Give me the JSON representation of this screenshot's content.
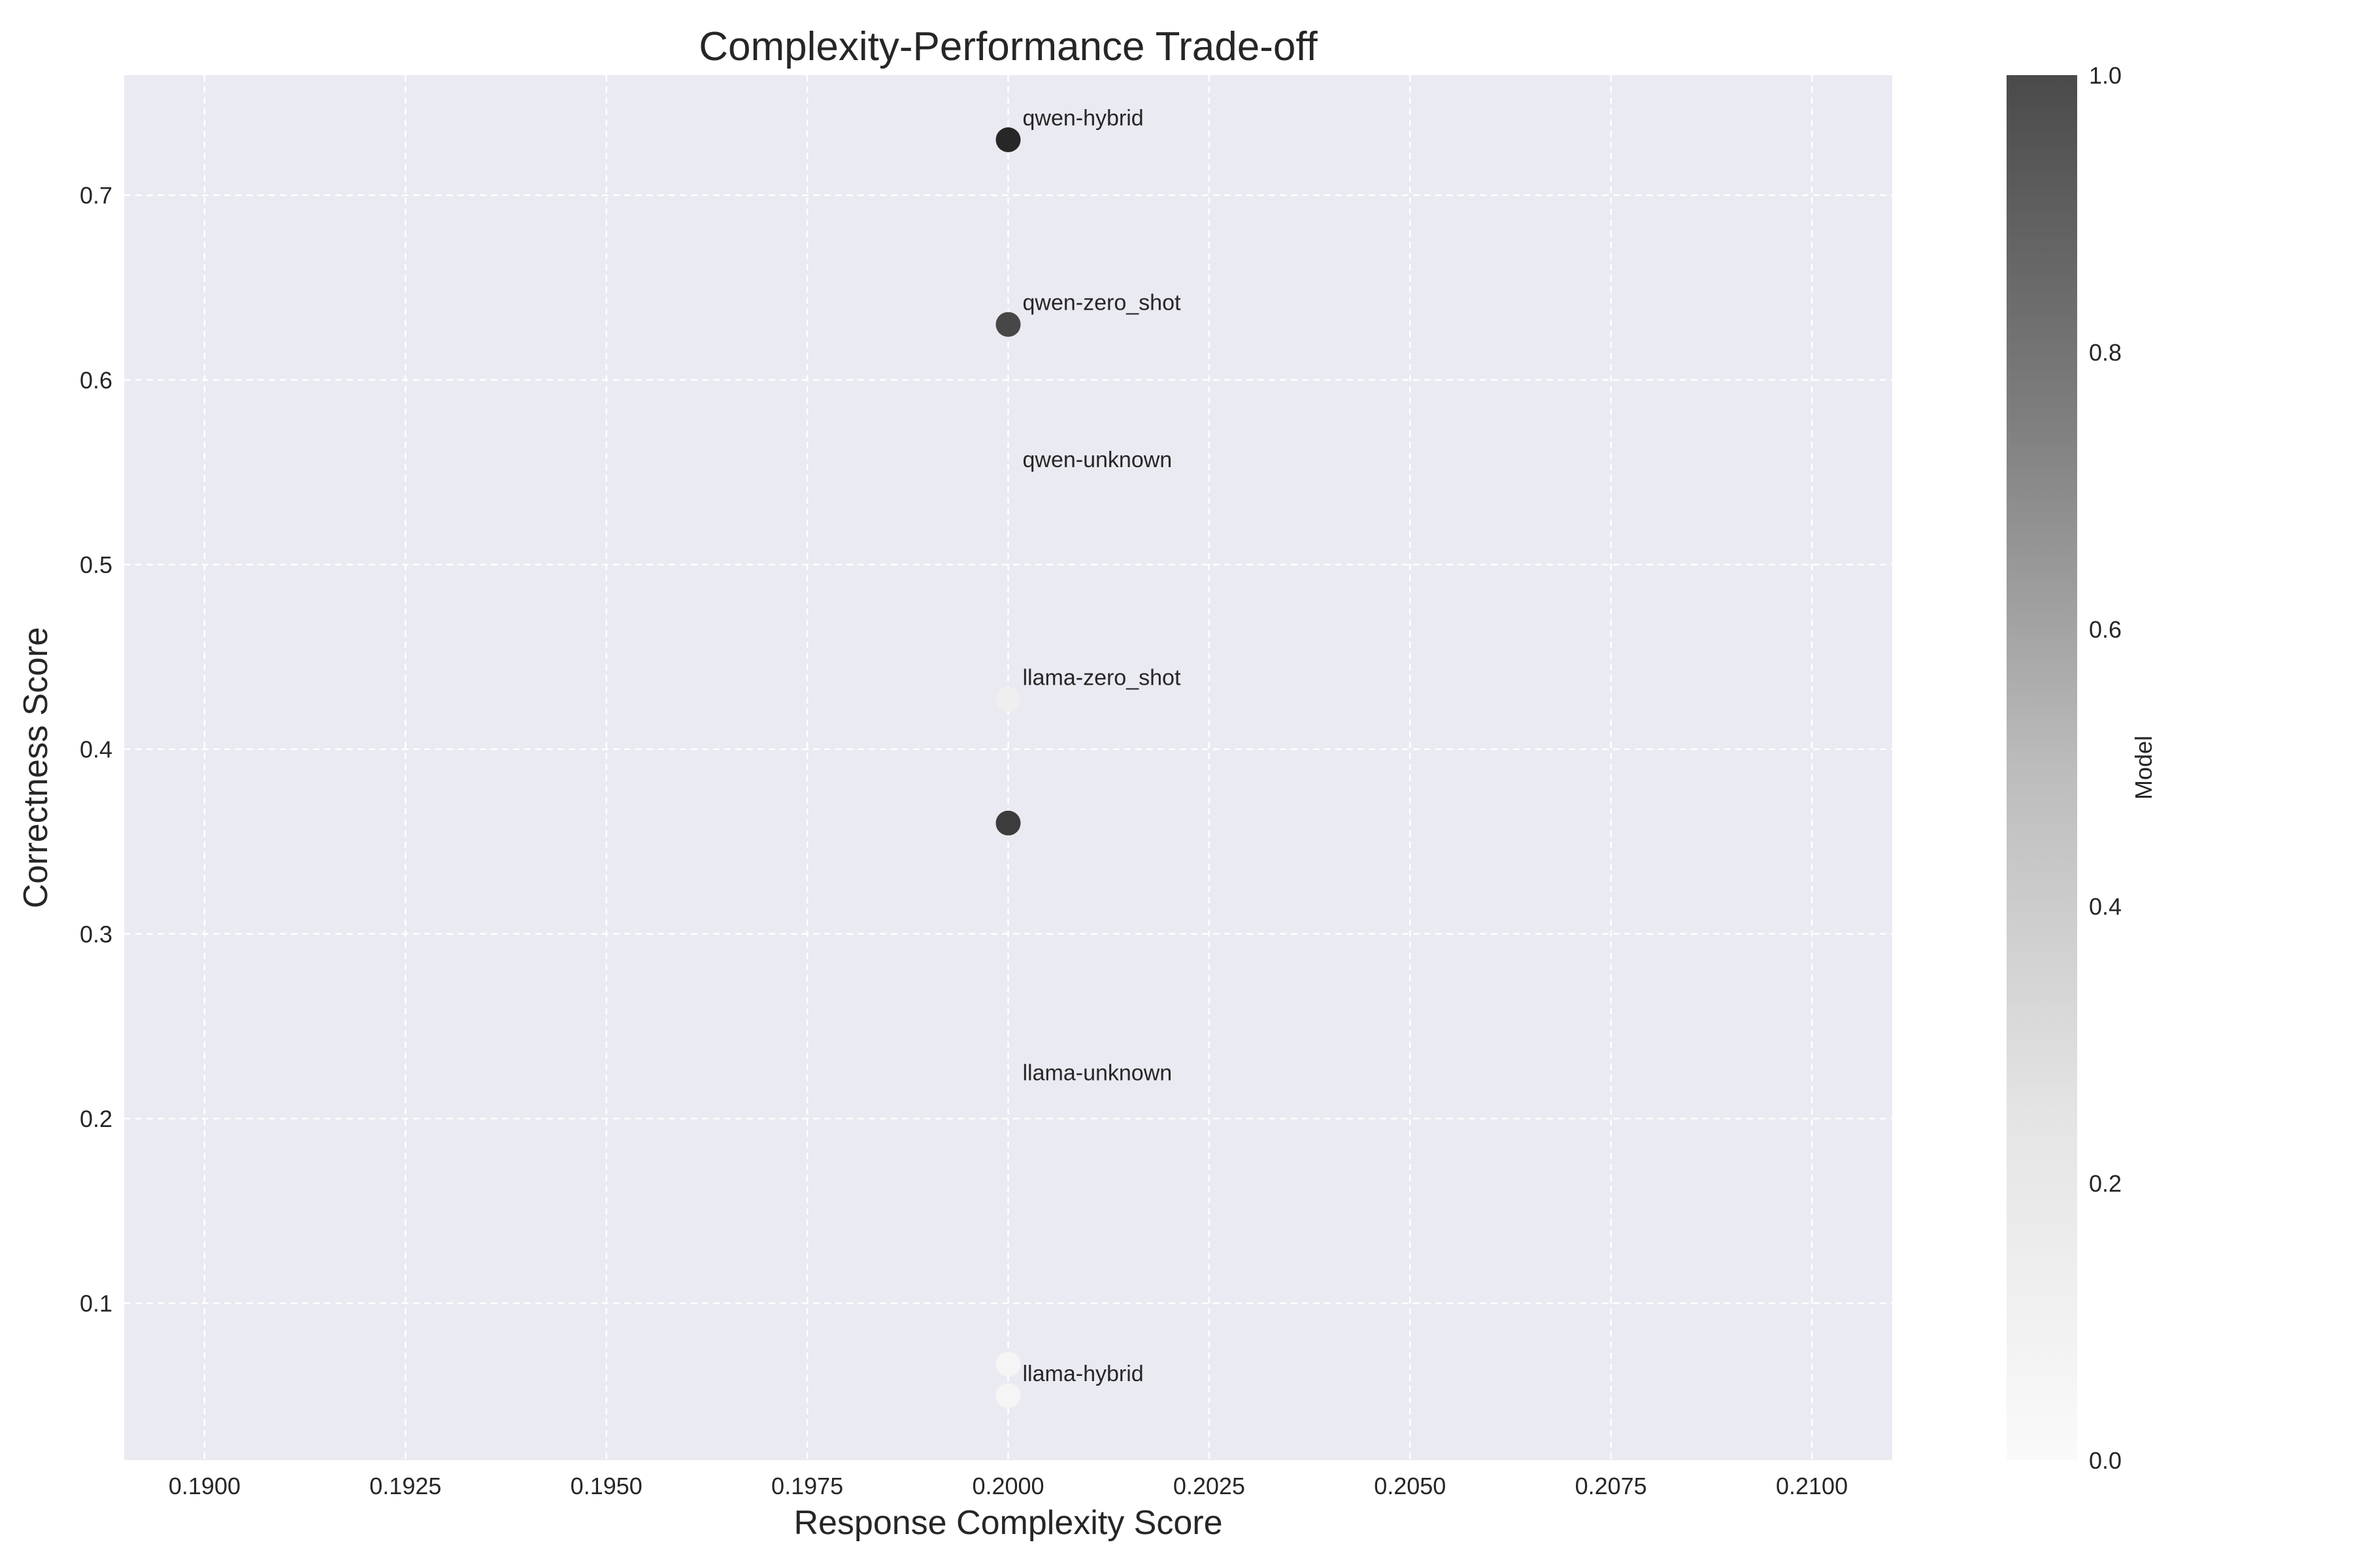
{
  "chart_data": {
    "type": "scatter",
    "title": "Complexity-Performance Trade-off",
    "xlabel": "Response Complexity Score",
    "ylabel": "Correctness Score",
    "xlim": [
      0.189,
      0.211
    ],
    "ylim": [
      0.015,
      0.765
    ],
    "x_ticks": [
      0.19,
      0.1925,
      0.195,
      0.1975,
      0.2,
      0.2025,
      0.205,
      0.2075,
      0.21
    ],
    "x_tick_labels": [
      "0.1900",
      "0.1925",
      "0.1950",
      "0.1975",
      "0.2000",
      "0.2025",
      "0.2050",
      "0.2075",
      "0.2100"
    ],
    "y_ticks": [
      0.1,
      0.2,
      0.3,
      0.4,
      0.5,
      0.6,
      0.7
    ],
    "y_tick_labels": [
      "0.1",
      "0.2",
      "0.3",
      "0.4",
      "0.5",
      "0.6",
      "0.7"
    ],
    "grid": true,
    "points": [
      {
        "x": 0.2,
        "y": 0.73,
        "color_value": 1.0
      },
      {
        "x": 0.2,
        "y": 0.63,
        "color_value": 0.85
      },
      {
        "x": 0.2,
        "y": 0.427,
        "color_value": 0.05
      },
      {
        "x": 0.2,
        "y": 0.36,
        "color_value": 0.9
      },
      {
        "x": 0.2,
        "y": 0.067,
        "color_value": 0.02
      },
      {
        "x": 0.2,
        "y": 0.05,
        "color_value": 0.02
      }
    ],
    "annotations": [
      {
        "text": "qwen-hybrid",
        "x": 0.2,
        "y": 0.73
      },
      {
        "text": "qwen-zero_shot",
        "x": 0.2,
        "y": 0.63
      },
      {
        "text": "qwen-unknown",
        "x": 0.2,
        "y": 0.545
      },
      {
        "text": "llama-zero_shot",
        "x": 0.2,
        "y": 0.427
      },
      {
        "text": "llama-unknown",
        "x": 0.2,
        "y": 0.213
      },
      {
        "text": "llama-hybrid",
        "x": 0.2,
        "y": 0.05
      }
    ],
    "colorbar": {
      "label": "Model",
      "range": [
        0,
        1
      ],
      "ticks": [
        0.0,
        0.2,
        0.4,
        0.6,
        0.8,
        1.0
      ],
      "tick_labels": [
        "0.0",
        "0.2",
        "0.4",
        "0.6",
        "0.8",
        "1.0"
      ],
      "colormap": "Greys"
    },
    "colors": {
      "plot_background": "#eaeaf2",
      "grid": "#ffffff",
      "text": "#262626"
    }
  }
}
